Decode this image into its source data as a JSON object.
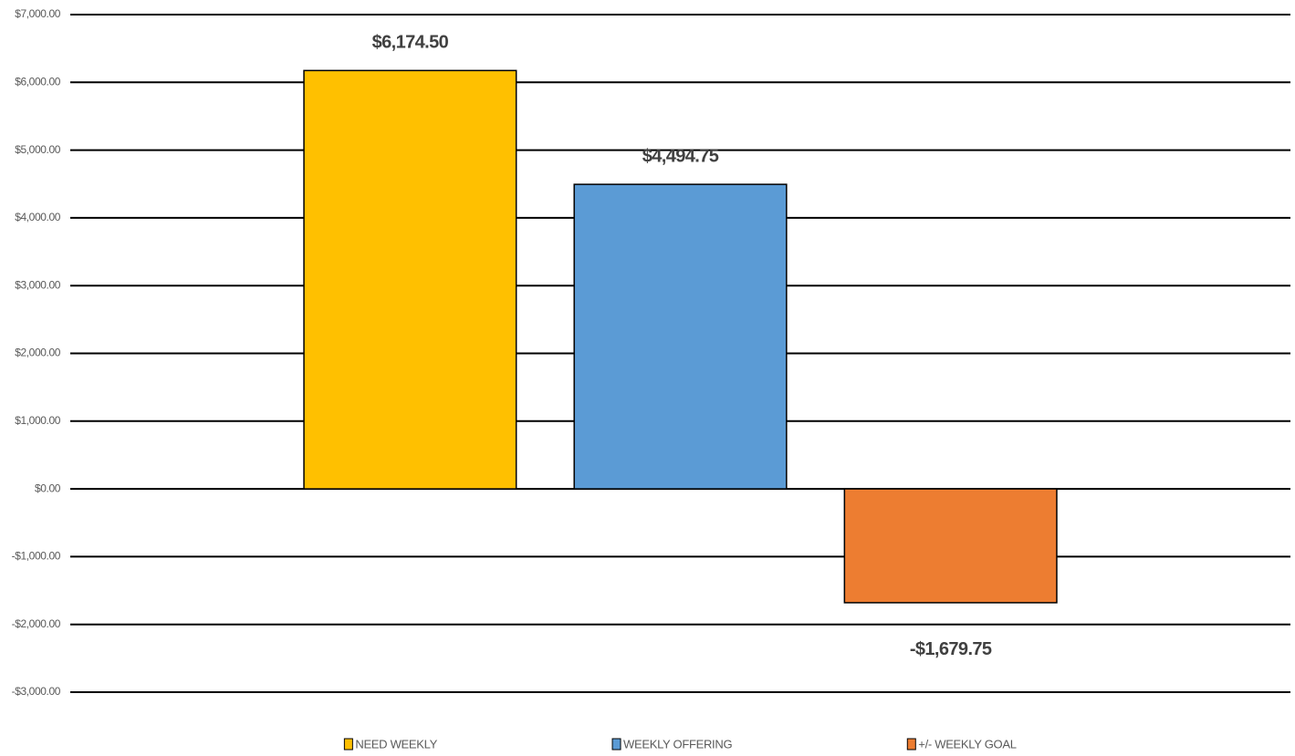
{
  "chart_data": {
    "type": "bar",
    "categories": [
      null
    ],
    "series": [
      {
        "name": "NEED WEEKLY",
        "color": "#ffc000",
        "values": [
          6174.5
        ],
        "value_labels": [
          "$6,174.50"
        ]
      },
      {
        "name": "WEEKLY OFFERING",
        "color": "#5b9bd5",
        "values": [
          4494.75
        ],
        "value_labels": [
          "$4,494.75"
        ]
      },
      {
        "name": "+/- WEEKLY GOAL",
        "color": "#ed7d31",
        "values": [
          -1679.75
        ],
        "value_labels": [
          "-$1,679.75"
        ]
      }
    ],
    "ylim": [
      -3000,
      7000
    ],
    "yticks": [
      {
        "value": -3000,
        "label": "-$3,000.00"
      },
      {
        "value": -2000,
        "label": "-$2,000.00"
      },
      {
        "value": -1000,
        "label": "-$1,000.00"
      },
      {
        "value": 0,
        "label": "$0.00"
      },
      {
        "value": 1000,
        "label": "$1,000.00"
      },
      {
        "value": 2000,
        "label": "$2,000.00"
      },
      {
        "value": 3000,
        "label": "$3,000.00"
      },
      {
        "value": 4000,
        "label": "$4,000.00"
      },
      {
        "value": 5000,
        "label": "$5,000.00"
      },
      {
        "value": 6000,
        "label": "$6,000.00"
      },
      {
        "value": 7000,
        "label": "$7,000.00"
      }
    ],
    "grid": true,
    "legend": "bottom"
  }
}
